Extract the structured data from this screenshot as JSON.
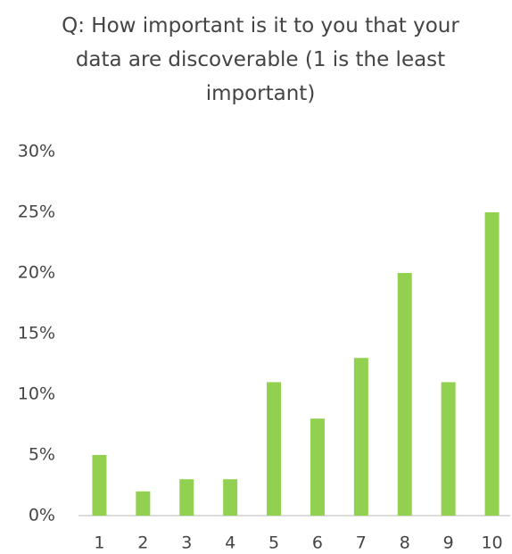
{
  "chart_data": {
    "type": "bar",
    "title": "Q: How important is it to you that your data are discoverable (1 is the least important)",
    "categories": [
      "1",
      "2",
      "3",
      "4",
      "5",
      "6",
      "7",
      "8",
      "9",
      "10"
    ],
    "values": [
      5,
      2,
      3,
      3,
      11,
      8,
      13,
      20,
      11,
      25
    ],
    "color": "#92d050",
    "ylim": [
      0,
      30
    ],
    "yticks": [
      {
        "value": 0,
        "label": "0%"
      },
      {
        "value": 5,
        "label": "5%"
      },
      {
        "value": 10,
        "label": "10%"
      },
      {
        "value": 15,
        "label": "15%"
      },
      {
        "value": 20,
        "label": "20%"
      },
      {
        "value": 25,
        "label": "25%"
      },
      {
        "value": 30,
        "label": "30%"
      }
    ],
    "grid": false
  }
}
